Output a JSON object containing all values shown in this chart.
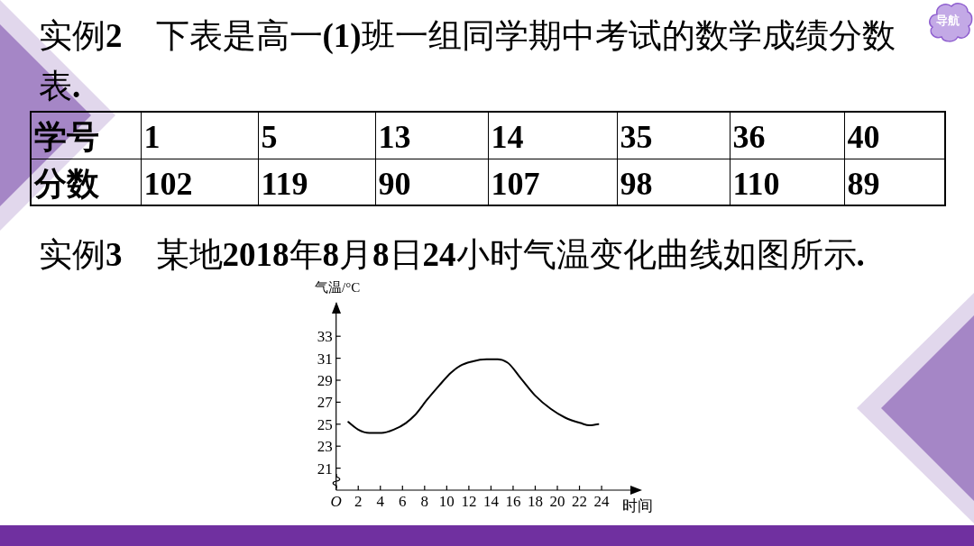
{
  "chart_data": [
    {
      "type": "other",
      "title": "实例2　下表是高一(1)班一组同学期中考试的数学成绩分数表.",
      "xlabel": "学号",
      "ylabel": "分数",
      "categories": [
        "1",
        "5",
        "13",
        "14",
        "35",
        "36",
        "40"
      ],
      "values": [
        102,
        119,
        90,
        107,
        98,
        110,
        89
      ],
      "data_labels": true,
      "annotations": [
        "导航"
      ]
    },
    {
      "type": "line",
      "title": "实例3　某地2018年8月8日24小时气温变化曲线如图所示.",
      "xlabel": "时间",
      "ylabel": "气温/°C",
      "x": [
        1.1,
        2,
        3,
        4.1,
        5.2,
        6.3,
        7.1,
        8.2,
        9.3,
        10.4,
        11.2,
        12.3,
        13.6,
        14.6,
        15.5,
        16.6,
        18,
        19.4,
        20.7,
        22.1,
        22.9,
        23.7
      ],
      "series": [
        {
          "color": "#000000",
          "values": [
            25.2,
            24.5,
            24.2,
            24.2,
            24.5,
            25.1,
            25.8,
            27.2,
            28.5,
            29.7,
            30.3,
            30.7,
            30.9,
            30.9,
            30.6,
            29.3,
            27.6,
            26.4,
            25.6,
            25.1,
            24.9,
            25.0
          ]
        }
      ],
      "xlim": [
        0,
        27.5
      ],
      "ylim": [
        19,
        36
      ],
      "xticks": [
        {
          "value": 0,
          "label": "O"
        },
        2,
        4,
        6,
        8,
        10,
        12,
        14,
        16,
        18,
        20,
        22,
        24
      ],
      "yticks": [
        21,
        23,
        25,
        27,
        29,
        31,
        33
      ]
    }
  ]
}
